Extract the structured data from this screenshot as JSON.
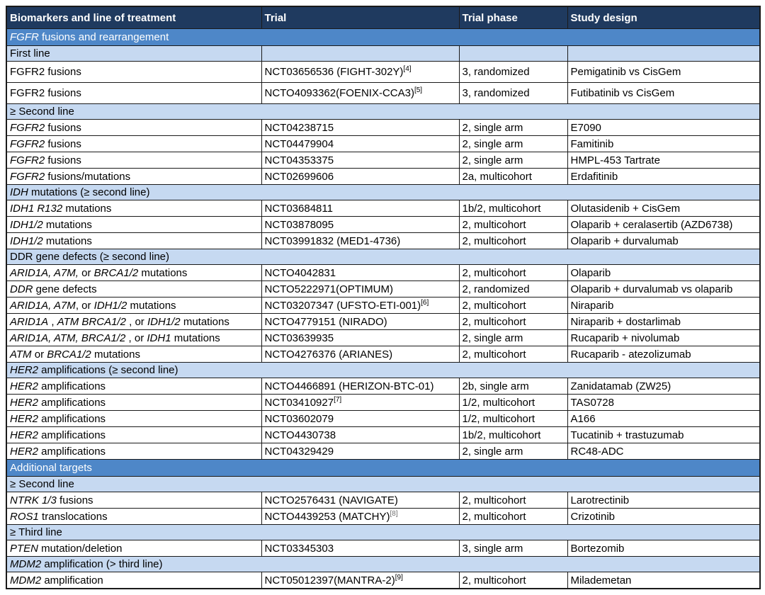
{
  "colors": {
    "header_bg": "#1F3A5F",
    "header_text": "#FFFFFF",
    "section_bg": "#4E87C8",
    "section_text": "#FFFFFF",
    "subsection_bg": "#C6D9F1",
    "border": "#1A1A1A",
    "data_bg": "#FFFFFF"
  },
  "table": {
    "header": [
      "Biomarkers and line of treatment",
      "Trial",
      "Trial phase",
      "Study design"
    ],
    "rows": [
      {
        "type": "section",
        "segments": [
          {
            "t": "FGFR",
            "i": true
          },
          {
            "t": " fusions and rearrangement"
          }
        ]
      },
      {
        "type": "subsection_cells",
        "segments": [
          {
            "t": "First line"
          }
        ]
      },
      {
        "type": "data",
        "tall": true,
        "biomarker": [
          {
            "t": "FGFR2 fusions"
          }
        ],
        "trial": "NCT03656536 (FIGHT-302Y)",
        "sup": "[4]",
        "phase": "3, randomized",
        "design": "Pemigatinib vs CisGem"
      },
      {
        "type": "data",
        "tall": true,
        "biomarker": [
          {
            "t": "FGFR2 fusions"
          }
        ],
        "trial": "NCTO4093362(FOENIX-CCA3)",
        "sup": "[5]",
        "phase": "3, randomized",
        "design": "Futibatinib vs CisGem"
      },
      {
        "type": "subsection",
        "segments": [
          {
            "t": "≥ Second line"
          }
        ]
      },
      {
        "type": "data",
        "biomarker": [
          {
            "t": "FGFR2",
            "i": true
          },
          {
            "t": " fusions"
          }
        ],
        "trial": "NCT04238715",
        "phase": "2, single arm",
        "design": "E7090"
      },
      {
        "type": "data",
        "biomarker": [
          {
            "t": "FGFR2",
            "i": true
          },
          {
            "t": " fusions"
          }
        ],
        "trial": "NCT04479904",
        "phase": "2, single arm",
        "design": "Famitinib"
      },
      {
        "type": "data",
        "biomarker": [
          {
            "t": "FGFR2",
            "i": true
          },
          {
            "t": " fusions"
          }
        ],
        "trial": "NCT04353375",
        "phase": "2, single arm",
        "design": "HMPL-453 Tartrate"
      },
      {
        "type": "data",
        "biomarker": [
          {
            "t": "FGFR2",
            "i": true
          },
          {
            "t": " fusions/mutations"
          }
        ],
        "trial": "NCT02699606",
        "phase": "2a, multicohort",
        "design": "Erdafitinib"
      },
      {
        "type": "subsection",
        "segments": [
          {
            "t": "IDH",
            "i": true
          },
          {
            "t": " mutations (≥ second line)"
          }
        ]
      },
      {
        "type": "data",
        "biomarker": [
          {
            "t": "IDH1 R132",
            "i": true
          },
          {
            "t": " mutations"
          }
        ],
        "trial": "NCT03684811",
        "phase": "1b/2, multicohort",
        "design": "Olutasidenib + CisGem"
      },
      {
        "type": "data",
        "biomarker": [
          {
            "t": "IDH1/2",
            "i": true
          },
          {
            "t": " mutations"
          }
        ],
        "trial": "NCT03878095",
        "phase": "2, multicohort",
        "design": "Olaparib + ceralasertib (AZD6738)"
      },
      {
        "type": "data",
        "biomarker": [
          {
            "t": "IDH1/2",
            "i": true
          },
          {
            "t": " mutations"
          }
        ],
        "trial": "NCT03991832 (MED1-4736)",
        "phase": "2, multicohort",
        "design": "Olaparib + durvalumab"
      },
      {
        "type": "subsection",
        "segments": [
          {
            "t": "DDR gene defects (≥ second line)"
          }
        ]
      },
      {
        "type": "data",
        "biomarker": [
          {
            "t": "ARID1A, A7M,",
            "i": true
          },
          {
            "t": " or "
          },
          {
            "t": "BRCA1/2",
            "i": true
          },
          {
            "t": " mutations"
          }
        ],
        "trial": "NCTO4042831",
        "phase": "2, multicohort",
        "design": "Olaparib"
      },
      {
        "type": "data",
        "biomarker": [
          {
            "t": "DDR",
            "i": true
          },
          {
            "t": " gene defects"
          }
        ],
        "trial": "NCTO5222971(OPTIMUM)",
        "phase": "2, randomized",
        "design": "Olaparib + durvalumab vs olaparib"
      },
      {
        "type": "data",
        "biomarker": [
          {
            "t": "ARID1A, A7M",
            "i": true
          },
          {
            "t": ", or "
          },
          {
            "t": "IDH1/2",
            "i": true
          },
          {
            "t": " mutations"
          }
        ],
        "trial": "NCT03207347 (UFSTO-ETI-001)",
        "sup": "[6]",
        "phase": "2, multicohort",
        "design": "Niraparib"
      },
      {
        "type": "data",
        "biomarker": [
          {
            "t": "ARID1A",
            "i": true
          },
          {
            "t": " , "
          },
          {
            "t": "ATM BRCA1/2",
            "i": true
          },
          {
            "t": " , or "
          },
          {
            "t": "IDH1/2",
            "i": true
          },
          {
            "t": " mutations"
          }
        ],
        "trial": "NCTO4779151 (NIRADO)",
        "phase": "2, multicohort",
        "design": "Niraparib + dostarlimab"
      },
      {
        "type": "data",
        "biomarker": [
          {
            "t": "ARID1A, ATM, BRCA1/2",
            "i": true
          },
          {
            "t": " , or "
          },
          {
            "t": "IDH1",
            "i": true
          },
          {
            "t": " mutations"
          }
        ],
        "trial": "NCT03639935",
        "phase": "2, single arm",
        "design": "Rucaparib + nivolumab"
      },
      {
        "type": "data",
        "biomarker": [
          {
            "t": "ATM",
            "i": true
          },
          {
            "t": " or "
          },
          {
            "t": "BRCA1/2",
            "i": true
          },
          {
            "t": " mutations"
          }
        ],
        "trial": "NCTO4276376 (ARIANES)",
        "phase": "2, multicohort",
        "design": "Rucaparib - atezolizumab"
      },
      {
        "type": "subsection",
        "segments": [
          {
            "t": "HER2",
            "i": true
          },
          {
            "t": " amplifications (≥ second line)"
          }
        ]
      },
      {
        "type": "data",
        "biomarker": [
          {
            "t": "HER2",
            "i": true
          },
          {
            "t": " amplifications"
          }
        ],
        "trial": "NCTO4466891 (HERIZON-BTC-01)",
        "phase": "2b, single arm",
        "design": "Zanidatamab (ZW25)"
      },
      {
        "type": "data",
        "biomarker": [
          {
            "t": "HER2",
            "i": true
          },
          {
            "t": " amplifications"
          }
        ],
        "trial": "NCT03410927",
        "sup": "[7]",
        "phase": "1/2, multicohort",
        "design": "TAS0728"
      },
      {
        "type": "data",
        "biomarker": [
          {
            "t": "HER2",
            "i": true
          },
          {
            "t": " amplifications"
          }
        ],
        "trial": "NCT03602079",
        "phase": "1/2, multicohort",
        "design": "A166"
      },
      {
        "type": "data",
        "biomarker": [
          {
            "t": "HER2",
            "i": true
          },
          {
            "t": " amplifications"
          }
        ],
        "trial": "NCTO4430738",
        "phase": "1b/2, multicohort",
        "design": "Tucatinib + trastuzumab"
      },
      {
        "type": "data",
        "biomarker": [
          {
            "t": "HER2",
            "i": true
          },
          {
            "t": " amplifications"
          }
        ],
        "trial": "NCT04329429",
        "phase": "2, single arm",
        "design": "RC48-ADC"
      },
      {
        "type": "section",
        "segments": [
          {
            "t": "Additional targets"
          }
        ]
      },
      {
        "type": "subsection",
        "segments": [
          {
            "t": "≥ Second line"
          }
        ]
      },
      {
        "type": "data",
        "biomarker": [
          {
            "t": "NTRK 1/3",
            "i": true
          },
          {
            "t": " fusions"
          }
        ],
        "trial": "NCTO2576431 (NAVIGATE)",
        "phase": "2, multicohort",
        "design": "Larotrectinib"
      },
      {
        "type": "data",
        "biomarker": [
          {
            "t": "ROS1",
            "i": true
          },
          {
            "t": " translocations"
          }
        ],
        "trial": "NCTO4439253 (MATCHY)",
        "sup": "[8]",
        "sup_muted": true,
        "phase": "2, multicohort",
        "design": "Crizotinib"
      },
      {
        "type": "subsection",
        "segments": [
          {
            "t": "≥ Third line"
          }
        ]
      },
      {
        "type": "data",
        "biomarker": [
          {
            "t": "PTEN",
            "i": true
          },
          {
            "t": " mutation/deletion"
          }
        ],
        "trial": "NCT03345303",
        "phase": "3, single arm",
        "design": "Bortezomib"
      },
      {
        "type": "subsection",
        "segments": [
          {
            "t": "MDM2",
            "i": true
          },
          {
            "t": " amplification (> third line)"
          }
        ]
      },
      {
        "type": "data",
        "biomarker": [
          {
            "t": "MDM2",
            "i": true
          },
          {
            "t": " amplification"
          }
        ],
        "trial": "NCT05012397(MANTRA-2)",
        "sup": "[9]",
        "phase": "2, multicohort",
        "design": "Milademetan"
      }
    ]
  }
}
